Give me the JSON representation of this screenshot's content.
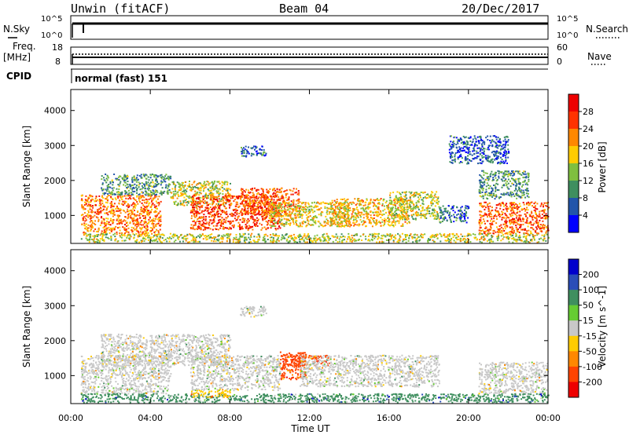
{
  "header": {
    "station": "Unwin (fitACF)",
    "beam": "Beam 04",
    "date": "20/Dec/2017"
  },
  "top_panels": {
    "nsky_label": "N.Sky",
    "nsky_ticks": [
      "10^5",
      "10^0"
    ],
    "nsearch_label": "N.Search",
    "nsearch_ticks": [
      "10^5",
      "10^0"
    ],
    "freq_label_1": "Freq.",
    "freq_label_2": "[MHz]",
    "freq_ticks": [
      "18",
      "8"
    ],
    "nave_label": "Nave",
    "nave_ticks": [
      "60",
      "0"
    ],
    "cpid_label": "CPID",
    "cpid_text": "normal (fast) 151"
  },
  "chart_data": [
    {
      "type": "heatmap",
      "name": "power",
      "xlabel": "Time UT",
      "ylabel": "Slant Range [km]",
      "x_ticks": [
        "00:00",
        "04:00",
        "08:00",
        "12:00",
        "16:00",
        "20:00",
        "00:00"
      ],
      "x_range_hours": [
        0,
        24
      ],
      "y_ticks": [
        1000,
        2000,
        3000,
        4000
      ],
      "ylim": [
        200,
        4600
      ],
      "colorbar_label": "Power [dB]",
      "colorbar_ticks": [
        "4",
        "8",
        "12",
        "16",
        "20",
        "24",
        "28"
      ],
      "colorbar_range": [
        0,
        32
      ],
      "colors": [
        "#0000ff",
        "#2255aa",
        "#3f8f5f",
        "#7fbf3f",
        "#ffcc00",
        "#ff8800",
        "#ff3300",
        "#ee0000"
      ],
      "scatter_regions": [
        {
          "x": [
            0.5,
            4.5
          ],
          "y": [
            500,
            1600
          ],
          "level": 0.75
        },
        {
          "x": [
            1.5,
            5.0
          ],
          "y": [
            1600,
            2200
          ],
          "level": 0.3
        },
        {
          "x": [
            5.0,
            8.0
          ],
          "y": [
            1300,
            2000
          ],
          "level": 0.5
        },
        {
          "x": [
            6.0,
            10.5
          ],
          "y": [
            600,
            1600
          ],
          "level": 0.85
        },
        {
          "x": [
            8.5,
            11.5
          ],
          "y": [
            1000,
            1800
          ],
          "level": 0.8
        },
        {
          "x": [
            10.0,
            14.0
          ],
          "y": [
            700,
            1400
          ],
          "level": 0.55
        },
        {
          "x": [
            13.0,
            17.0
          ],
          "y": [
            700,
            1500
          ],
          "level": 0.6
        },
        {
          "x": [
            16.0,
            18.5
          ],
          "y": [
            900,
            1700
          ],
          "level": 0.5
        },
        {
          "x": [
            18.5,
            20.0
          ],
          "y": [
            800,
            1300
          ],
          "level": 0.2
        },
        {
          "x": [
            20.5,
            24.0
          ],
          "y": [
            500,
            1400
          ],
          "level": 0.8
        },
        {
          "x": [
            20.5,
            23.0
          ],
          "y": [
            1500,
            2300
          ],
          "level": 0.3
        },
        {
          "x": [
            0.5,
            24.0
          ],
          "y": [
            250,
            500
          ],
          "level": 0.5
        },
        {
          "x": [
            8.5,
            9.8
          ],
          "y": [
            2700,
            3000
          ],
          "level": 0.2
        },
        {
          "x": [
            19.0,
            22.0
          ],
          "y": [
            2500,
            3300
          ],
          "level": 0.15
        }
      ]
    },
    {
      "type": "heatmap",
      "name": "velocity",
      "xlabel": "Time UT",
      "ylabel": "Slant Range [km]",
      "x_ticks": [
        "00:00",
        "04:00",
        "08:00",
        "12:00",
        "16:00",
        "20:00",
        "00:00"
      ],
      "x_range_hours": [
        0,
        24
      ],
      "y_ticks": [
        1000,
        2000,
        3000,
        4000
      ],
      "ylim": [
        200,
        4600
      ],
      "colorbar_label": "Velocity [m s^-1]",
      "colorbar_ticks": [
        "200",
        "100",
        "50",
        "15",
        "-15",
        "-50",
        "-100",
        "-200"
      ],
      "colors": [
        "#0000cc",
        "#2a4db8",
        "#3f8f5f",
        "#66cc33",
        "#c8c8c8",
        "#ffcc00",
        "#ff8800",
        "#ff4400",
        "#ee0000"
      ],
      "scatter_regions": [
        {
          "x": [
            0.5,
            5.0
          ],
          "y": [
            500,
            1600
          ],
          "level": 0.5
        },
        {
          "x": [
            1.5,
            8.0
          ],
          "y": [
            1300,
            2200
          ],
          "level": 0.5
        },
        {
          "x": [
            6.0,
            10.5
          ],
          "y": [
            600,
            1600
          ],
          "level": 0.5
        },
        {
          "x": [
            10.5,
            11.8
          ],
          "y": [
            900,
            1700
          ],
          "level": 0.92
        },
        {
          "x": [
            11.0,
            13.0
          ],
          "y": [
            1300,
            1600
          ],
          "level": 0.9
        },
        {
          "x": [
            11.5,
            18.5
          ],
          "y": [
            700,
            1600
          ],
          "level": 0.5
        },
        {
          "x": [
            20.5,
            24.0
          ],
          "y": [
            500,
            1400
          ],
          "level": 0.5
        },
        {
          "x": [
            0.5,
            24.0
          ],
          "y": [
            250,
            500
          ],
          "level": 0.3
        },
        {
          "x": [
            6.0,
            8.0
          ],
          "y": [
            400,
            600
          ],
          "level": 0.65
        },
        {
          "x": [
            8.5,
            9.8
          ],
          "y": [
            2700,
            3000
          ],
          "level": 0.5
        }
      ]
    }
  ]
}
